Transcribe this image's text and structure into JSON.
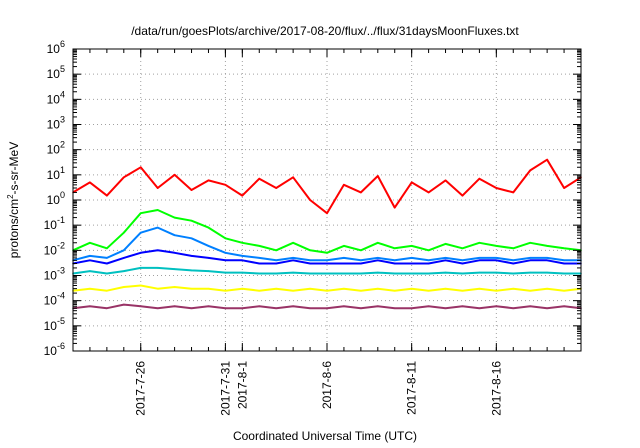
{
  "chart_data": {
    "type": "line",
    "title": "/data/run/goesPlots/archive/2017-08-20/flux/../flux/31daysMoonFluxes.txt",
    "xlabel": "Coordinated Universal Time (UTC)",
    "ylabel": {
      "prefix": "protons/cm",
      "sup": "2",
      "suffix": "-s-sr-MeV"
    },
    "yscale": "log",
    "ylim_exp": [
      -6,
      6
    ],
    "y_ticks": [
      {
        "base": "10",
        "exp": "6"
      },
      {
        "base": "10",
        "exp": "5"
      },
      {
        "base": "10",
        "exp": "4"
      },
      {
        "base": "10",
        "exp": "3"
      },
      {
        "base": "10",
        "exp": "2"
      },
      {
        "base": "10",
        "exp": "1"
      },
      {
        "base": "10",
        "exp": "0"
      },
      {
        "base": "10",
        "exp": "-1"
      },
      {
        "base": "10",
        "exp": "-2"
      },
      {
        "base": "10",
        "exp": "-3"
      },
      {
        "base": "10",
        "exp": "-4"
      },
      {
        "base": "10",
        "exp": "-5"
      },
      {
        "base": "10",
        "exp": "-6"
      }
    ],
    "xlim": [
      "2017-07-22",
      "2017-08-21"
    ],
    "x_ticks": [
      "2017-7-26",
      "2017-7-31",
      "2017-8-1",
      "2017-8-6",
      "2017-8-11",
      "2017-8-16"
    ],
    "grid": true,
    "series": [
      {
        "color": "#ff0000",
        "x": [
          "2017-07-22",
          "2017-07-23",
          "2017-07-24",
          "2017-07-25",
          "2017-07-26",
          "2017-07-27",
          "2017-07-28",
          "2017-07-29",
          "2017-07-30",
          "2017-07-31",
          "2017-08-01",
          "2017-08-02",
          "2017-08-03",
          "2017-08-04",
          "2017-08-05",
          "2017-08-06",
          "2017-08-07",
          "2017-08-08",
          "2017-08-09",
          "2017-08-10",
          "2017-08-11",
          "2017-08-12",
          "2017-08-13",
          "2017-08-14",
          "2017-08-15",
          "2017-08-16",
          "2017-08-17",
          "2017-08-18",
          "2017-08-19",
          "2017-08-20",
          "2017-08-21"
        ],
        "y": [
          2,
          5,
          1.5,
          8,
          20,
          3,
          10,
          2.5,
          6,
          4,
          1.5,
          7,
          3,
          8,
          1,
          0.3,
          4,
          2,
          9,
          0.5,
          5,
          2,
          6,
          1.5,
          7,
          3,
          2,
          15,
          40,
          3,
          8
        ]
      },
      {
        "color": "#00ff00",
        "x": [
          "2017-07-22",
          "2017-07-23",
          "2017-07-24",
          "2017-07-25",
          "2017-07-26",
          "2017-07-27",
          "2017-07-28",
          "2017-07-29",
          "2017-07-30",
          "2017-07-31",
          "2017-08-01",
          "2017-08-02",
          "2017-08-03",
          "2017-08-04",
          "2017-08-05",
          "2017-08-06",
          "2017-08-07",
          "2017-08-08",
          "2017-08-09",
          "2017-08-10",
          "2017-08-11",
          "2017-08-12",
          "2017-08-13",
          "2017-08-14",
          "2017-08-15",
          "2017-08-16",
          "2017-08-17",
          "2017-08-18",
          "2017-08-19",
          "2017-08-20",
          "2017-08-21"
        ],
        "y": [
          0.01,
          0.02,
          0.012,
          0.05,
          0.3,
          0.4,
          0.2,
          0.15,
          0.08,
          0.03,
          0.02,
          0.015,
          0.01,
          0.02,
          0.01,
          0.008,
          0.015,
          0.01,
          0.02,
          0.012,
          0.015,
          0.01,
          0.018,
          0.012,
          0.02,
          0.015,
          0.012,
          0.02,
          0.015,
          0.012,
          0.01
        ]
      },
      {
        "color": "#0080ff",
        "x": [
          "2017-07-22",
          "2017-07-23",
          "2017-07-24",
          "2017-07-25",
          "2017-07-26",
          "2017-07-27",
          "2017-07-28",
          "2017-07-29",
          "2017-07-30",
          "2017-07-31",
          "2017-08-01",
          "2017-08-02",
          "2017-08-03",
          "2017-08-04",
          "2017-08-05",
          "2017-08-06",
          "2017-08-07",
          "2017-08-08",
          "2017-08-09",
          "2017-08-10",
          "2017-08-11",
          "2017-08-12",
          "2017-08-13",
          "2017-08-14",
          "2017-08-15",
          "2017-08-16",
          "2017-08-17",
          "2017-08-18",
          "2017-08-19",
          "2017-08-20",
          "2017-08-21"
        ],
        "y": [
          0.004,
          0.006,
          0.005,
          0.01,
          0.05,
          0.08,
          0.04,
          0.03,
          0.015,
          0.008,
          0.006,
          0.005,
          0.004,
          0.005,
          0.004,
          0.004,
          0.005,
          0.004,
          0.005,
          0.004,
          0.005,
          0.004,
          0.005,
          0.004,
          0.005,
          0.005,
          0.004,
          0.005,
          0.005,
          0.004,
          0.004
        ]
      },
      {
        "color": "#0000ff",
        "x": [
          "2017-07-22",
          "2017-07-23",
          "2017-07-24",
          "2017-07-25",
          "2017-07-26",
          "2017-07-27",
          "2017-07-28",
          "2017-07-29",
          "2017-07-30",
          "2017-07-31",
          "2017-08-01",
          "2017-08-02",
          "2017-08-03",
          "2017-08-04",
          "2017-08-05",
          "2017-08-06",
          "2017-08-07",
          "2017-08-08",
          "2017-08-09",
          "2017-08-10",
          "2017-08-11",
          "2017-08-12",
          "2017-08-13",
          "2017-08-14",
          "2017-08-15",
          "2017-08-16",
          "2017-08-17",
          "2017-08-18",
          "2017-08-19",
          "2017-08-20",
          "2017-08-21"
        ],
        "y": [
          0.003,
          0.004,
          0.003,
          0.005,
          0.008,
          0.01,
          0.008,
          0.006,
          0.005,
          0.004,
          0.004,
          0.003,
          0.003,
          0.004,
          0.003,
          0.003,
          0.003,
          0.003,
          0.004,
          0.003,
          0.003,
          0.003,
          0.004,
          0.003,
          0.004,
          0.004,
          0.003,
          0.004,
          0.004,
          0.003,
          0.003
        ]
      },
      {
        "color": "#00c0c0",
        "x": [
          "2017-07-22",
          "2017-07-23",
          "2017-07-24",
          "2017-07-25",
          "2017-07-26",
          "2017-07-27",
          "2017-07-28",
          "2017-07-29",
          "2017-07-30",
          "2017-07-31",
          "2017-08-01",
          "2017-08-02",
          "2017-08-03",
          "2017-08-04",
          "2017-08-05",
          "2017-08-06",
          "2017-08-07",
          "2017-08-08",
          "2017-08-09",
          "2017-08-10",
          "2017-08-11",
          "2017-08-12",
          "2017-08-13",
          "2017-08-14",
          "2017-08-15",
          "2017-08-16",
          "2017-08-17",
          "2017-08-18",
          "2017-08-19",
          "2017-08-20",
          "2017-08-21"
        ],
        "y": [
          0.0012,
          0.0015,
          0.0012,
          0.0015,
          0.002,
          0.002,
          0.0018,
          0.0016,
          0.0015,
          0.0013,
          0.0013,
          0.0012,
          0.0012,
          0.0013,
          0.0012,
          0.0012,
          0.0012,
          0.0012,
          0.0013,
          0.0012,
          0.0012,
          0.0012,
          0.0013,
          0.0012,
          0.0013,
          0.0013,
          0.0012,
          0.0013,
          0.0013,
          0.0012,
          0.0012
        ]
      },
      {
        "color": "#ffff00",
        "x": [
          "2017-07-22",
          "2017-07-23",
          "2017-07-24",
          "2017-07-25",
          "2017-07-26",
          "2017-07-27",
          "2017-07-28",
          "2017-07-29",
          "2017-07-30",
          "2017-07-31",
          "2017-08-01",
          "2017-08-02",
          "2017-08-03",
          "2017-08-04",
          "2017-08-05",
          "2017-08-06",
          "2017-08-07",
          "2017-08-08",
          "2017-08-09",
          "2017-08-10",
          "2017-08-11",
          "2017-08-12",
          "2017-08-13",
          "2017-08-14",
          "2017-08-15",
          "2017-08-16",
          "2017-08-17",
          "2017-08-18",
          "2017-08-19",
          "2017-08-20",
          "2017-08-21"
        ],
        "y": [
          0.00025,
          0.0003,
          0.00025,
          0.00035,
          0.0004,
          0.0003,
          0.00035,
          0.0003,
          0.0003,
          0.00025,
          0.0003,
          0.00025,
          0.0003,
          0.00025,
          0.0003,
          0.00025,
          0.0003,
          0.00025,
          0.0003,
          0.00025,
          0.0003,
          0.00025,
          0.0003,
          0.00025,
          0.0003,
          0.00025,
          0.0003,
          0.00025,
          0.0003,
          0.00025,
          0.0003
        ]
      },
      {
        "color": "#993366",
        "x": [
          "2017-07-22",
          "2017-07-23",
          "2017-07-24",
          "2017-07-25",
          "2017-07-26",
          "2017-07-27",
          "2017-07-28",
          "2017-07-29",
          "2017-07-30",
          "2017-07-31",
          "2017-08-01",
          "2017-08-02",
          "2017-08-03",
          "2017-08-04",
          "2017-08-05",
          "2017-08-06",
          "2017-08-07",
          "2017-08-08",
          "2017-08-09",
          "2017-08-10",
          "2017-08-11",
          "2017-08-12",
          "2017-08-13",
          "2017-08-14",
          "2017-08-15",
          "2017-08-16",
          "2017-08-17",
          "2017-08-18",
          "2017-08-19",
          "2017-08-20",
          "2017-08-21"
        ],
        "y": [
          5e-05,
          6e-05,
          5e-05,
          7e-05,
          6e-05,
          5e-05,
          6e-05,
          5e-05,
          6e-05,
          5e-05,
          5e-05,
          6e-05,
          5e-05,
          6e-05,
          5e-05,
          5e-05,
          6e-05,
          5e-05,
          6e-05,
          5e-05,
          5e-05,
          6e-05,
          5e-05,
          6e-05,
          5e-05,
          6e-05,
          5e-05,
          6e-05,
          5e-05,
          6e-05,
          5e-05
        ]
      }
    ]
  }
}
